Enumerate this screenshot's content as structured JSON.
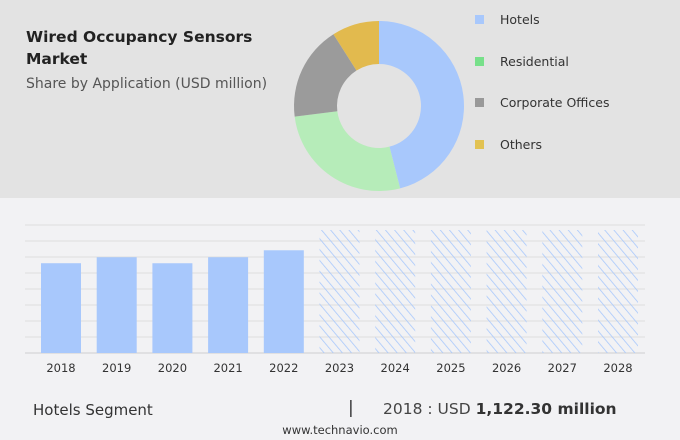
{
  "header": {
    "title": "Wired Occupancy Sensors Market",
    "subtitle": "Share by Application (USD million)"
  },
  "chart_data": [
    {
      "type": "pie",
      "variant": "donut",
      "categories": [
        "Hotels",
        "Residential",
        "Corporate Offices",
        "Others"
      ],
      "values": [
        46,
        27,
        18,
        9
      ],
      "colors": [
        "#a8c8fc",
        "#b6ecb9",
        "#9b9b9b",
        "#e2ba4e"
      ],
      "legend_colors": [
        "#a8c8fc",
        "#77e08a",
        "#999999",
        "#e2c252"
      ],
      "legend": "right"
    },
    {
      "type": "bar",
      "categories": [
        "2018",
        "2019",
        "2020",
        "2021",
        "2022",
        "2023",
        "2024",
        "2025",
        "2026",
        "2027",
        "2028"
      ],
      "values": [
        1122.3,
        1197,
        1122,
        1197,
        1284,
        null,
        null,
        null,
        null,
        null,
        null
      ],
      "forecast_from": "2023",
      "ylim": [
        0,
        1600
      ],
      "grid": true,
      "color": "#a8c8fc",
      "xlabel": "",
      "ylabel": ""
    }
  ],
  "footer": {
    "segment": "Hotels Segment",
    "separator": "|",
    "year_label": "2018 : USD",
    "value": "1,122.30 million",
    "site": "www.technavio.com"
  }
}
